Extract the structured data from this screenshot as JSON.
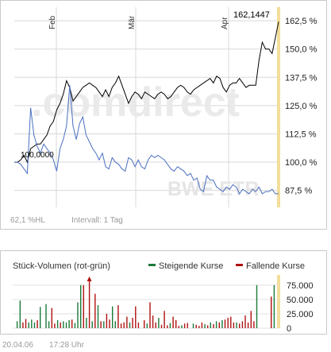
{
  "main_chart": {
    "watermark_brand": ".comdirect",
    "watermark_exchange": "BWE ETR",
    "month_labels": [
      "Feb",
      "Mär",
      "Apr"
    ],
    "y_tick_labels": [
      "162,5 %",
      "150,0 %",
      "137,5 %",
      "125,0 %",
      "112,5 %",
      "100,0 %",
      "87,5 %"
    ],
    "start_label": "100,0000",
    "end_label": "162,1447",
    "hl_text": "62,1 %HL",
    "interval_text": "Intervall: 1 Tag"
  },
  "volume_chart": {
    "title": "Stück-Volumen (rot-grün)",
    "legend_up": "Steigende Kurse",
    "legend_down": "Fallende Kurse",
    "y_tick_labels": [
      "75.000",
      "50.000",
      "25.000",
      "0"
    ]
  },
  "footer": {
    "date": "20.04.06",
    "time": "17:28 Uhr"
  },
  "colors": {
    "price_line": "#000000",
    "relative_line": "#4a6fc0",
    "rising": "#1a7a3a",
    "falling": "#b01010",
    "today_marker": "#f3dd9a",
    "grid": "#d8d8d8"
  },
  "chart_data": [
    {
      "type": "line",
      "ylim": [
        80,
        165
      ],
      "yticks": [
        162.5,
        150,
        137.5,
        125,
        112.5,
        100,
        87.5
      ],
      "series": [
        {
          "values": [
            100,
            100,
            101,
            103,
            100,
            106,
            107,
            108,
            108,
            110,
            112,
            116,
            118,
            123,
            126,
            130,
            136,
            133,
            127,
            129,
            131,
            133,
            134,
            135,
            134,
            133,
            131,
            129,
            132,
            129,
            133,
            135,
            138,
            134,
            130,
            126,
            129,
            131,
            130,
            128,
            131,
            130,
            129,
            128,
            130,
            131,
            130,
            128,
            129,
            131,
            133,
            134,
            133,
            131,
            130,
            132,
            133,
            134,
            135,
            136,
            137,
            135,
            138,
            137,
            133,
            131,
            134,
            135,
            135,
            137,
            135,
            133,
            134,
            134,
            134,
            145,
            153,
            150,
            150,
            148,
            155,
            162.1
          ]
        },
        {
          "values": [
            100,
            100,
            99,
            97,
            95,
            124,
            112,
            107,
            104,
            108,
            106,
            104,
            101,
            96,
            106,
            110,
            116,
            134,
            116,
            110,
            117,
            120,
            112,
            109,
            106,
            104,
            101,
            104,
            98,
            97,
            102,
            100,
            99,
            97,
            96,
            102,
            101,
            98,
            101,
            98,
            97,
            101,
            103,
            102,
            103,
            102,
            101,
            99,
            97,
            96,
            98,
            97,
            96,
            94,
            95,
            92,
            93,
            88,
            87,
            94,
            92,
            92,
            89,
            88,
            87,
            89,
            88,
            90,
            89,
            86,
            88,
            87,
            86,
            88,
            87,
            89,
            86,
            87,
            87,
            88,
            86,
            86
          ]
        }
      ]
    },
    {
      "type": "bar",
      "title": "Stück-Volumen (rot-grün)",
      "ylim": [
        0,
        90000
      ],
      "yticks": [
        75000,
        50000,
        25000,
        0
      ],
      "series": [
        {
          "name": "Steigende Kurse",
          "values": [
            0,
            12000,
            48000,
            0,
            0,
            10000,
            15000,
            10000,
            0,
            37000,
            0,
            42000,
            12000,
            0,
            0,
            14000,
            0,
            12000,
            10000,
            14000,
            0,
            9000,
            45000,
            75000,
            0,
            18000,
            0,
            12000,
            0,
            40000,
            0,
            12000,
            0,
            0,
            38000,
            12000,
            0,
            0,
            0,
            0,
            10000,
            0,
            0,
            0,
            0,
            0,
            8000,
            0,
            0,
            0,
            18000,
            0,
            0,
            0,
            9000,
            0,
            0,
            0,
            5000,
            0,
            0,
            0,
            8000,
            0,
            0,
            0,
            7000,
            0,
            10000,
            0,
            12000,
            0,
            14000,
            0,
            0,
            0,
            0,
            10000,
            0,
            0,
            0,
            0,
            0,
            0,
            75000,
            0,
            0,
            0,
            0,
            0,
            75000,
            0
          ]
        },
        {
          "name": "Fallende Kurse",
          "values": [
            0,
            0,
            0,
            10000,
            16000,
            0,
            0,
            0,
            14000,
            0,
            0,
            0,
            0,
            35000,
            8000,
            0,
            10000,
            0,
            0,
            0,
            15000,
            0,
            0,
            0,
            75000,
            0,
            90000,
            0,
            60000,
            0,
            12000,
            0,
            25000,
            15000,
            0,
            0,
            40000,
            8000,
            10000,
            20000,
            0,
            18000,
            38000,
            10000,
            0,
            14000,
            0,
            45000,
            22000,
            10000,
            0,
            6000,
            30000,
            5000,
            0,
            20000,
            14000,
            4000,
            0,
            8000,
            9000,
            0,
            0,
            6000,
            4000,
            10000,
            0,
            5000,
            0,
            7000,
            0,
            10000,
            0,
            15000,
            18000,
            20000,
            10000,
            0,
            8000,
            12000,
            22000,
            10000,
            30000,
            12000,
            0,
            0,
            0,
            0,
            0,
            55000,
            0,
            0
          ]
        }
      ]
    }
  ]
}
